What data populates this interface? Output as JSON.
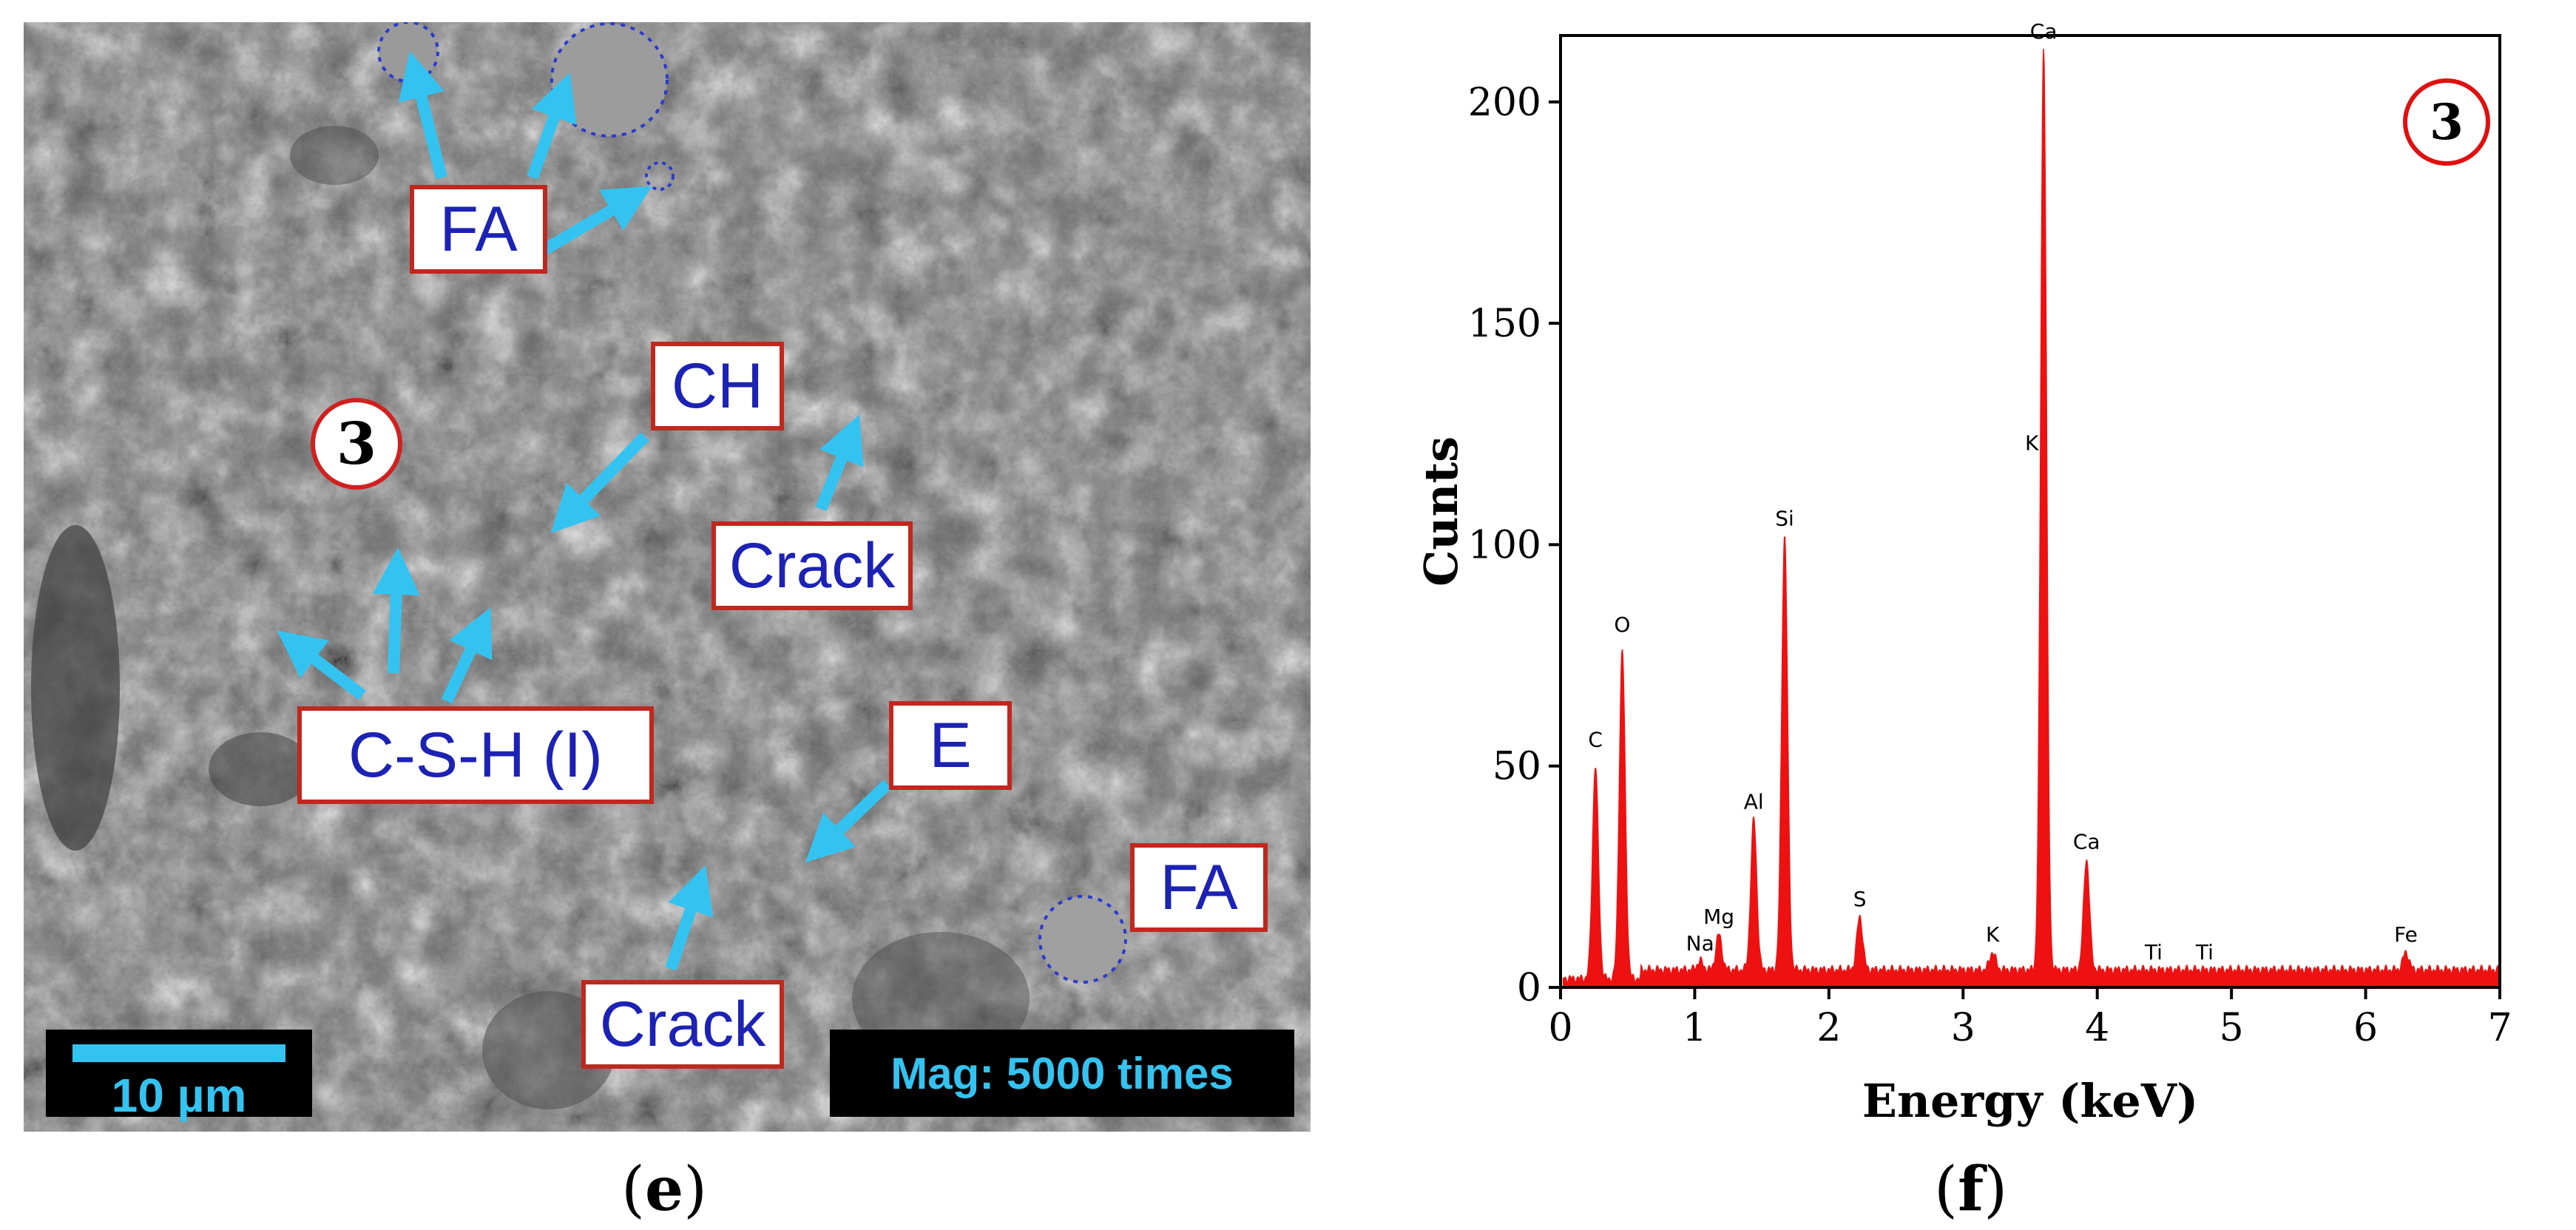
{
  "sem": {
    "labels": {
      "fa_top": "FA",
      "ch": "CH",
      "crack_upper": "Crack",
      "csh": "C-S-H (I)",
      "e": "E",
      "fa_right": "FA",
      "crack_lower": "Crack"
    },
    "site_badge": "3",
    "scale_bar": "10 µm",
    "magnification": "Mag: 5000 times",
    "colors": {
      "arrow": "#34c3f0",
      "label_border": "#c0281e",
      "label_text": "#1c22b4"
    }
  },
  "captions": {
    "left": "e",
    "right": "f"
  },
  "chart_data": {
    "type": "line",
    "title": "",
    "xlabel": "Energy (keV)",
    "ylabel": "Cunts",
    "xlim": [
      0,
      7
    ],
    "ylim": [
      0,
      215
    ],
    "x_ticks": [
      0,
      1,
      2,
      3,
      4,
      5,
      6,
      7
    ],
    "y_ticks": [
      0,
      50,
      100,
      150,
      200
    ],
    "badge": "3",
    "fill_color": "#ee1111",
    "background_counts": 4,
    "peaks": [
      {
        "element": "C",
        "x": 0.26,
        "y": 52
      },
      {
        "element": "O",
        "x": 0.46,
        "y": 78
      },
      {
        "element": "Na",
        "x": 1.04,
        "y": 6
      },
      {
        "element": "Mg",
        "x": 1.18,
        "y": 12
      },
      {
        "element": "Al",
        "x": 1.44,
        "y": 38
      },
      {
        "element": "Si",
        "x": 1.67,
        "y": 102
      },
      {
        "element": "S",
        "x": 2.23,
        "y": 16
      },
      {
        "element": "K",
        "x": 3.22,
        "y": 8
      },
      {
        "element": "K",
        "x": 3.6,
        "y": 122
      },
      {
        "element": "Ca",
        "x": 3.6,
        "y": 212
      },
      {
        "element": "Ca",
        "x": 3.92,
        "y": 29
      },
      {
        "element": "Ti",
        "x": 4.42,
        "y": 4
      },
      {
        "element": "Ti",
        "x": 4.8,
        "y": 4
      },
      {
        "element": "Fe",
        "x": 6.3,
        "y": 8
      }
    ]
  }
}
